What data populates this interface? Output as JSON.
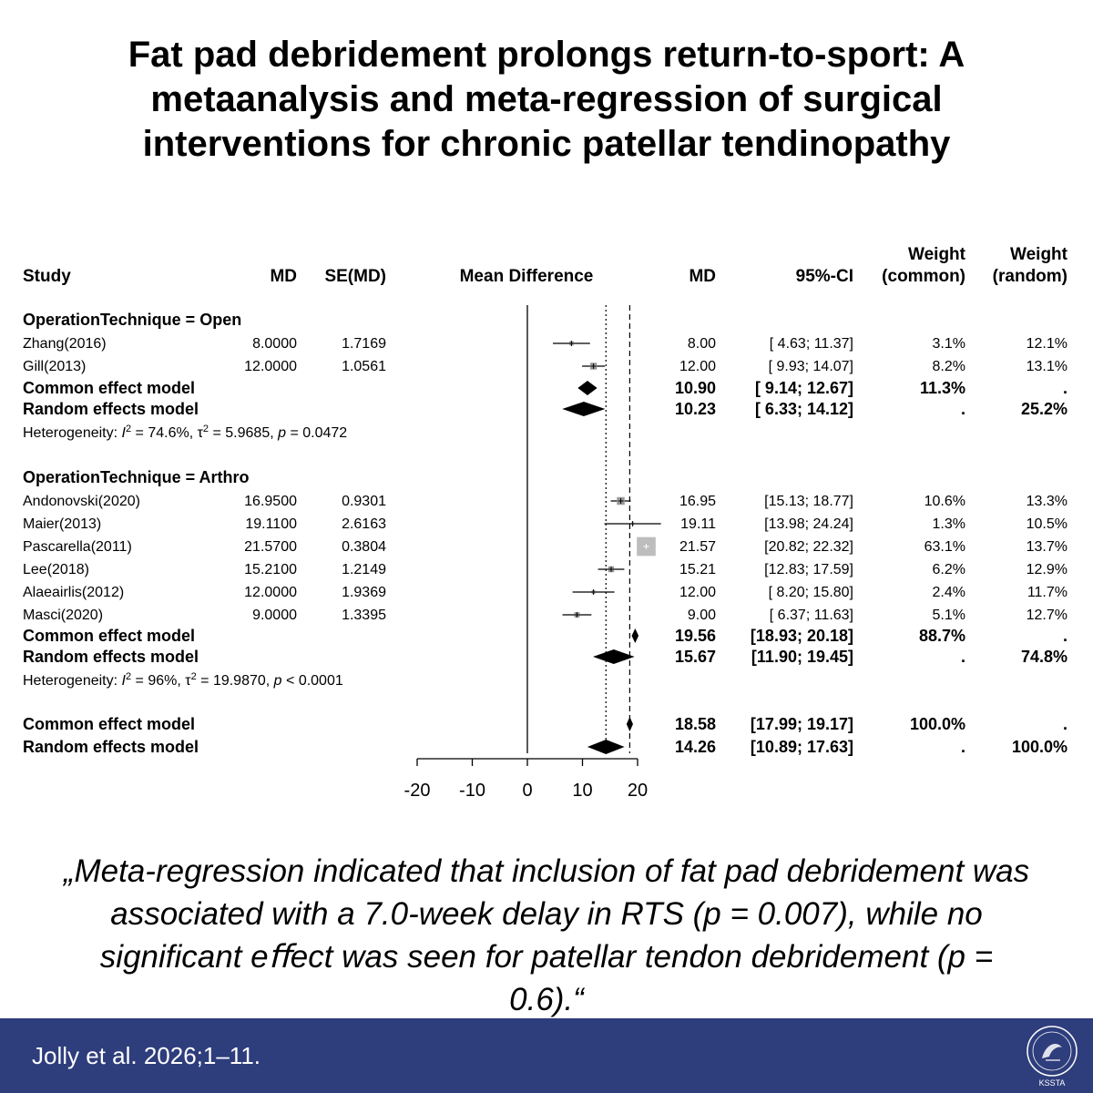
{
  "title": {
    "line1": "Fat pad debridement prolongs return-to-sport: A",
    "line2": "metaanalysis and meta-regression of surgical",
    "line3": "interventions for chronic patellar tendinopathy"
  },
  "chart_data": {
    "type": "forest",
    "headers": {
      "study": "Study",
      "md": "MD",
      "se": "SE(MD)",
      "mean_difference": "Mean Difference",
      "md_ci": "MD",
      "ci": "95%-CI",
      "weight_common_1": "Weight",
      "weight_common_2": "(common)",
      "weight_random_1": "Weight",
      "weight_random_2": "(random)"
    },
    "xaxis": {
      "ticks": [
        -20,
        -10,
        0,
        10,
        20
      ],
      "tick_labels": [
        "-20",
        "-10",
        "0",
        "10",
        "20"
      ],
      "range": [
        -20,
        20
      ]
    },
    "reference_lines": {
      "null": 0,
      "common_effect": 18.58,
      "random_effects": 14.26
    },
    "groups": [
      {
        "label": "OperationTechnique = Open",
        "studies": [
          {
            "name": "Zhang(2016)",
            "md": 8.0,
            "se": "1.7169",
            "md_raw": "8.0000",
            "md_text": "8.00",
            "lower": 4.63,
            "upper": 11.37,
            "ci": "[ 4.63; 11.37]",
            "w_common": "3.1%",
            "w_random": "12.1%",
            "w_common_val": 3.1
          },
          {
            "name": "Gill(2013)",
            "md": 12.0,
            "se": "1.0561",
            "md_raw": "12.0000",
            "md_text": "12.00",
            "lower": 9.93,
            "upper": 14.07,
            "ci": "[ 9.93; 14.07]",
            "w_common": "8.2%",
            "w_random": "13.1%",
            "w_common_val": 8.2
          }
        ],
        "common": {
          "label": "Common effect model",
          "md": 10.9,
          "md_text": "10.90",
          "lower": 9.14,
          "upper": 12.67,
          "ci": "[ 9.14; 12.67]",
          "w_common": "11.3%",
          "w_random": "."
        },
        "random": {
          "label": "Random effects model",
          "md": 10.23,
          "md_text": "10.23",
          "lower": 6.33,
          "upper": 14.12,
          "ci": "[ 6.33; 14.12]",
          "w_common": ".",
          "w_random": "25.2%"
        },
        "heterogeneity": {
          "prefix": "Heterogeneity: ",
          "i2_label": "I",
          "sq": "2",
          "i2_value": " = 74.6%, ",
          "tau_label": "τ",
          "tau_value": " = 5.9685, ",
          "p_label": "p",
          "p_value": " = 0.0472"
        }
      },
      {
        "label": "OperationTechnique = Arthro",
        "studies": [
          {
            "name": "Andonovski(2020)",
            "md": 16.95,
            "se": "0.9301",
            "md_raw": "16.9500",
            "md_text": "16.95",
            "lower": 15.13,
            "upper": 18.77,
            "ci": "[15.13; 18.77]",
            "w_common": "10.6%",
            "w_random": "13.3%",
            "w_common_val": 10.6
          },
          {
            "name": "Maier(2013)",
            "md": 19.11,
            "se": "2.6163",
            "md_raw": "19.1100",
            "md_text": "19.11",
            "lower": 13.98,
            "upper": 24.24,
            "ci": "[13.98; 24.24]",
            "w_common": "1.3%",
            "w_random": "10.5%",
            "w_common_val": 1.3
          },
          {
            "name": "Pascarella(2011)",
            "md": 21.57,
            "se": "0.3804",
            "md_raw": "21.5700",
            "md_text": "21.57",
            "lower": 20.82,
            "upper": 22.32,
            "ci": "[20.82; 22.32]",
            "w_common": "63.1%",
            "w_random": "13.7%",
            "w_common_val": 63.1
          },
          {
            "name": "Lee(2018)",
            "md": 15.21,
            "se": "1.2149",
            "md_raw": "15.2100",
            "md_text": "15.21",
            "lower": 12.83,
            "upper": 17.59,
            "ci": "[12.83; 17.59]",
            "w_common": "6.2%",
            "w_random": "12.9%",
            "w_common_val": 6.2
          },
          {
            "name": "Alaeairlis(2012)",
            "md": 12.0,
            "se": "1.9369",
            "md_raw": "12.0000",
            "md_text": "12.00",
            "lower": 8.2,
            "upper": 15.8,
            "ci": "[ 8.20; 15.80]",
            "w_common": "2.4%",
            "w_random": "11.7%",
            "w_common_val": 2.4
          },
          {
            "name": "Masci(2020)",
            "md": 9.0,
            "se": "1.3395",
            "md_raw": "9.0000",
            "md_text": "9.00",
            "lower": 6.37,
            "upper": 11.63,
            "ci": "[ 6.37; 11.63]",
            "w_common": "5.1%",
            "w_random": "12.7%",
            "w_common_val": 5.1
          }
        ],
        "common": {
          "label": "Common effect model",
          "md": 19.56,
          "md_text": "19.56",
          "lower": 18.93,
          "upper": 20.18,
          "ci": "[18.93; 20.18]",
          "w_common": "88.7%",
          "w_random": "."
        },
        "random": {
          "label": "Random effects model",
          "md": 15.67,
          "md_text": "15.67",
          "lower": 11.9,
          "upper": 19.45,
          "ci": "[11.90; 19.45]",
          "w_common": ".",
          "w_random": "74.8%"
        },
        "heterogeneity": {
          "prefix": "Heterogeneity: ",
          "i2_label": "I",
          "sq": "2",
          "i2_value": " = 96%, ",
          "tau_label": "τ",
          "tau_value": " = 19.9870, ",
          "p_label": "p",
          "p_value": " < 0.0001"
        }
      }
    ],
    "overall": {
      "common": {
        "label": "Common effect model",
        "md": 18.58,
        "md_text": "18.58",
        "lower": 17.99,
        "upper": 19.17,
        "ci": "[17.99; 19.17]",
        "w_common": "100.0%",
        "w_random": "."
      },
      "random": {
        "label": "Random effects model",
        "md": 14.26,
        "md_text": "14.26",
        "lower": 10.89,
        "upper": 17.63,
        "ci": "[10.89; 17.63]",
        "w_common": ".",
        "w_random": "100.0%"
      }
    }
  },
  "quote": {
    "line1": "„Meta-regression indicated that inclusion of fat pad debridement was",
    "line2": "associated with a 7.0-week delay in RTS (p = 0.007), while no",
    "line3": "significant eﬀect was seen for patellar tendon debridement (p =",
    "line4": "0.6).“"
  },
  "footer": {
    "citation": "Jolly et al. 2026;1–11.",
    "logo_text": "KSSTA",
    "logo_icon": "kssta-logo-icon"
  },
  "colors": {
    "footer_bg": "#2e3d7c",
    "text": "#000000",
    "pascarella_box": "#bdbdbd"
  }
}
